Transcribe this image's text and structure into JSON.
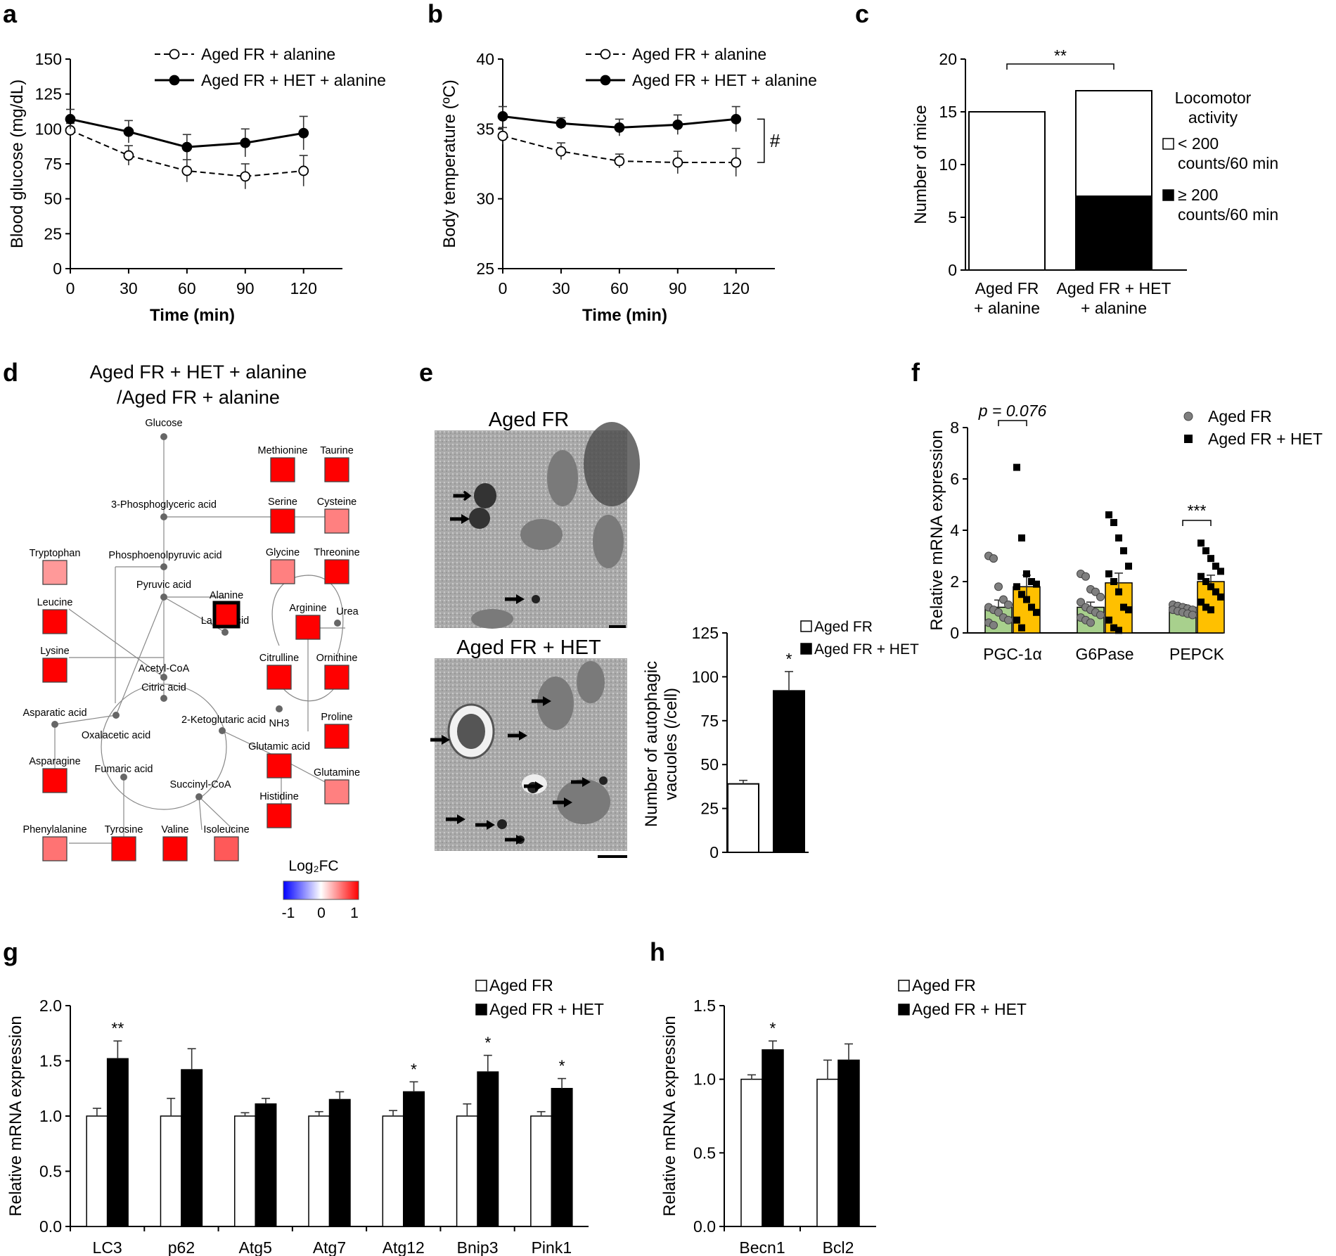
{
  "panel_labels": {
    "a": "a",
    "b": "b",
    "c": "c",
    "d": "d",
    "e": "e",
    "f": "f",
    "g": "g",
    "h": "h"
  },
  "chart_data": [
    {
      "id": "a",
      "type": "line",
      "x": [
        0,
        30,
        60,
        90,
        120
      ],
      "series": [
        {
          "name": "Aged FR + alanine",
          "style": "dashed-open",
          "values": [
            99,
            81,
            70,
            66,
            70
          ],
          "errors": [
            5,
            7,
            8,
            9,
            11
          ]
        },
        {
          "name": "Aged FR + HET + alanine",
          "style": "solid-filled",
          "values": [
            107,
            98,
            87,
            90,
            97
          ],
          "errors": [
            7,
            8,
            9,
            10,
            12
          ]
        }
      ],
      "xlabel": "Time (min)",
      "ylabel": "Blood glucose (mg/dL)",
      "xticks": [
        "0",
        "30",
        "60",
        "90",
        "120"
      ],
      "yticks": [
        "0",
        "25",
        "50",
        "75",
        "100",
        "125",
        "150"
      ],
      "xlim": [
        0,
        140
      ],
      "ylim": [
        0,
        150
      ]
    },
    {
      "id": "b",
      "type": "line",
      "x": [
        0,
        30,
        60,
        90,
        120
      ],
      "series": [
        {
          "name": "Aged FR + alanine",
          "style": "dashed-open",
          "values": [
            34.5,
            33.4,
            32.7,
            32.6,
            32.6
          ],
          "errors": [
            0.6,
            0.6,
            0.5,
            0.8,
            1.0
          ]
        },
        {
          "name": "Aged FR + HET + alanine",
          "style": "solid-filled",
          "values": [
            35.9,
            35.4,
            35.1,
            35.3,
            35.7
          ],
          "errors": [
            0.7,
            0.4,
            0.6,
            0.7,
            0.9
          ]
        }
      ],
      "annotation": "#",
      "xlabel": "Time (min)",
      "ylabel": "Body temperature (ºC)",
      "xticks": [
        "0",
        "30",
        "60",
        "90",
        "120"
      ],
      "yticks": [
        "25",
        "30",
        "35",
        "40"
      ],
      "xlim": [
        0,
        140
      ],
      "ylim": [
        25,
        40
      ]
    },
    {
      "id": "c",
      "type": "bar",
      "categories": [
        "Aged FR\n+ alanine",
        "Aged FR + HET\n+ alanine"
      ],
      "series": [
        {
          "name": "< 200\ncounts/60 min",
          "fill": "white",
          "values": [
            15,
            10
          ]
        },
        {
          "name": "≥ 200\ncounts/60 min",
          "fill": "black",
          "values": [
            0,
            7
          ]
        }
      ],
      "stacked": true,
      "significance": "**",
      "legend_title": "Locomotor\nactivity",
      "ylabel": "Number of mice",
      "yticks": [
        "0",
        "5",
        "10",
        "15",
        "20"
      ],
      "ylim": [
        0,
        20
      ]
    },
    {
      "id": "e",
      "type": "bar",
      "categories": [
        "Aged FR",
        "Aged FR + HET"
      ],
      "values": [
        39,
        92
      ],
      "errors": [
        2,
        11
      ],
      "significance": [
        "",
        "*"
      ],
      "ylabel": "Number of autophagic\nvacuoles (/cell)",
      "yticks": [
        "0",
        "25",
        "50",
        "75",
        "100",
        "125"
      ],
      "ylim": [
        0,
        125
      ],
      "legend": [
        "Aged FR",
        "Aged FR + HET"
      ]
    },
    {
      "id": "f",
      "type": "bar",
      "categories": [
        "PGC-1α",
        "G6Pase",
        "PEPCK"
      ],
      "series": [
        {
          "name": "Aged FR",
          "fill": "#a8d08d",
          "marker": "circle",
          "values": [
            1.0,
            1.0,
            1.0
          ],
          "errors": [
            0.28,
            0.2,
            0.1
          ],
          "points": [
            [
              3.0,
              2.9,
              1.8,
              1.3,
              1.1,
              1.0,
              0.9,
              0.8,
              0.6,
              0.5,
              0.4,
              0.3
            ],
            [
              2.3,
              2.2,
              1.7,
              1.6,
              1.4,
              1.2,
              1.0,
              0.9,
              0.8,
              0.7,
              0.6,
              0.5,
              0.4
            ],
            [
              1.1,
              1.05,
              1.0,
              0.95,
              0.9,
              0.9,
              0.85,
              0.8,
              0.75,
              0.7
            ]
          ]
        },
        {
          "name": "Aged FR + HET",
          "fill": "#ffc000",
          "marker": "square",
          "values": [
            1.8,
            1.95,
            2.0
          ],
          "errors": [
            0.45,
            0.38,
            0.25
          ],
          "points": [
            [
              6.45,
              3.7,
              2.3,
              2.0,
              1.9,
              1.8,
              1.5,
              1.3,
              1.0,
              0.8,
              0.5,
              0.2
            ],
            [
              4.6,
              4.3,
              3.7,
              3.2,
              2.6,
              2.3,
              2.0,
              1.6,
              1.0,
              0.9,
              0.5,
              0.2,
              0.1
            ],
            [
              3.5,
              3.2,
              2.9,
              2.6,
              2.4,
              2.2,
              2.0,
              1.8,
              1.6,
              1.4,
              1.2,
              1.0,
              0.9
            ]
          ]
        }
      ],
      "significance": [
        "p = 0.076",
        "",
        "***"
      ],
      "ylabel": "Relative mRNA expression",
      "yticks": [
        "0",
        "2",
        "4",
        "6",
        "8"
      ],
      "ylim": [
        0,
        8
      ]
    },
    {
      "id": "g",
      "type": "bar",
      "categories": [
        "LC3",
        "p62",
        "Atg5",
        "Atg7",
        "Atg12",
        "Bnip3",
        "Pink1"
      ],
      "series": [
        {
          "name": "Aged FR",
          "fill": "white",
          "values": [
            1.0,
            1.0,
            1.0,
            1.0,
            1.0,
            1.0,
            1.0
          ],
          "errors": [
            0.07,
            0.16,
            0.03,
            0.04,
            0.05,
            0.11,
            0.04
          ]
        },
        {
          "name": "Aged FR + HET",
          "fill": "black",
          "values": [
            1.52,
            1.42,
            1.11,
            1.15,
            1.22,
            1.4,
            1.25
          ],
          "errors": [
            0.16,
            0.19,
            0.05,
            0.07,
            0.09,
            0.15,
            0.09
          ]
        }
      ],
      "significance": [
        "**",
        "",
        "",
        "",
        "*",
        "*",
        "*"
      ],
      "ylabel": "Relative mRNA expression",
      "yticks": [
        "0.0",
        "0.5",
        "1.0",
        "1.5",
        "2.0"
      ],
      "ylim": [
        0,
        2
      ]
    },
    {
      "id": "h",
      "type": "bar",
      "categories": [
        "Becn1",
        "Bcl2"
      ],
      "series": [
        {
          "name": "Aged FR",
          "fill": "white",
          "values": [
            1.0,
            1.0
          ],
          "errors": [
            0.03,
            0.13
          ]
        },
        {
          "name": "Aged FR + HET",
          "fill": "black",
          "values": [
            1.2,
            1.13
          ],
          "errors": [
            0.06,
            0.11
          ]
        }
      ],
      "significance": [
        "*",
        ""
      ],
      "ylabel": "Relative mRNA expression",
      "yticks": [
        "0.0",
        "0.5",
        "1.0",
        "1.5"
      ],
      "ylim": [
        0,
        1.5
      ]
    }
  ],
  "pathway": {
    "title_line1": "Aged FR + HET + alanine",
    "title_line2": "/Aged FR + alanine",
    "colorbar_label": "Log₂FC",
    "colorbar_ticks": [
      "-1",
      "0",
      "1"
    ],
    "metabolites": [
      {
        "key": "methionine",
        "label": "Methionine",
        "log2fc": 1.0
      },
      {
        "key": "taurine",
        "label": "Taurine",
        "log2fc": 1.0
      },
      {
        "key": "serine",
        "label": "Serine",
        "log2fc": 1.0
      },
      {
        "key": "cysteine",
        "label": "Cysteine",
        "log2fc": 0.5
      },
      {
        "key": "glycine",
        "label": "Glycine",
        "log2fc": 0.5
      },
      {
        "key": "threonine",
        "label": "Threonine",
        "log2fc": 1.0
      },
      {
        "key": "tryptophan",
        "label": "Tryptophan",
        "log2fc": 0.4
      },
      {
        "key": "leucine",
        "label": "Leucine",
        "log2fc": 1.0
      },
      {
        "key": "alanine",
        "label": "Alanine",
        "log2fc": 1.0
      },
      {
        "key": "arginine",
        "label": "Arginine",
        "log2fc": 1.0
      },
      {
        "key": "lysine",
        "label": "Lysine",
        "log2fc": 1.0
      },
      {
        "key": "citrulline",
        "label": "Citrulline",
        "log2fc": 1.0
      },
      {
        "key": "ornithine",
        "label": "Ornithine",
        "log2fc": 1.0
      },
      {
        "key": "proline",
        "label": "Proline",
        "log2fc": 1.0
      },
      {
        "key": "asparagine",
        "label": "Asparagine",
        "log2fc": 1.0
      },
      {
        "key": "glutamic",
        "label": "Glutamic acid",
        "log2fc": 1.0
      },
      {
        "key": "glutamine",
        "label": "Glutamine",
        "log2fc": 0.5
      },
      {
        "key": "histidine",
        "label": "Histidine",
        "log2fc": 1.0
      },
      {
        "key": "phenylalanine",
        "label": "Phenylalanine",
        "log2fc": 0.55
      },
      {
        "key": "tyrosine",
        "label": "Tyrosine",
        "log2fc": 1.0
      },
      {
        "key": "valine",
        "label": "Valine",
        "log2fc": 1.0
      },
      {
        "key": "isoleucine",
        "label": "Isoleucine",
        "log2fc": 0.65
      }
    ],
    "intermediates": [
      {
        "key": "glucose",
        "label": "Glucose"
      },
      {
        "key": "pga",
        "label": "3-Phosphoglyceric acid"
      },
      {
        "key": "pep",
        "label": "Phosphoenolpyruvic acid"
      },
      {
        "key": "pyruvic",
        "label": "Pyruvic acid"
      },
      {
        "key": "lactic",
        "label": "Lactic acid"
      },
      {
        "key": "acetylcoa",
        "label": "Acetyl-CoA"
      },
      {
        "key": "citric",
        "label": "Citric acid"
      },
      {
        "key": "aspartic",
        "label": "Asparatic acid"
      },
      {
        "key": "oxalacetic",
        "label": "Oxalacetic acid"
      },
      {
        "key": "ketoglutaric",
        "label": "2-Ketoglutaric acid"
      },
      {
        "key": "fumaric",
        "label": "Fumaric acid"
      },
      {
        "key": "succinyl",
        "label": "Succinyl-CoA"
      },
      {
        "key": "urea",
        "label": "Urea"
      },
      {
        "key": "nh3",
        "label": "NH3"
      }
    ]
  },
  "micrographs": {
    "top_title": "Aged FR",
    "bottom_title": "Aged FR + HET"
  }
}
